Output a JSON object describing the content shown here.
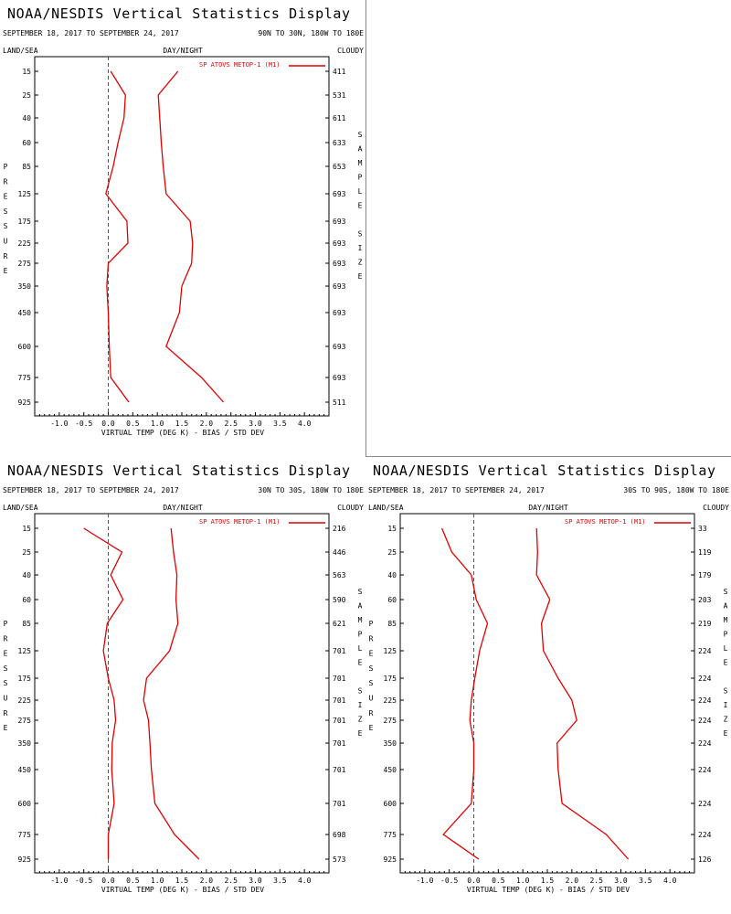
{
  "chart_data": [
    {
      "type": "line",
      "title": "NOAA/NESDIS Vertical Statistics Display",
      "date_range": "SEPTEMBER 18, 2017 TO SEPTEMBER 24, 2017",
      "region": "90N TO 30N, 180W TO 180E",
      "land_sea": "LAND/SEA",
      "day_night": "DAY/NIGHT",
      "cloudy": "CLOUDY",
      "ylabel": "PRESSURE",
      "right_label": "SAMPLE SIZE",
      "xlabel": "VIRTUAL TEMP (DEG K) - BIAS / STD DEV",
      "xlim": [
        -1.5,
        4.5
      ],
      "x_ticks": [
        "-1.0",
        "-0.5",
        "0.0",
        "0.5",
        "1.0",
        "1.5",
        "2.0",
        "2.5",
        "3.0",
        "3.5",
        "4.0"
      ],
      "pressure_levels": [
        15,
        25,
        40,
        60,
        85,
        125,
        175,
        225,
        275,
        350,
        450,
        600,
        775,
        925
      ],
      "sample_size": [
        "411",
        "531",
        "611",
        "633",
        "653",
        "693",
        "693",
        "693",
        "693",
        "693",
        "693",
        "693",
        "693",
        "511"
      ],
      "legend": "SP ATOVS METOP-1 (M1)",
      "series": [
        {
          "name": "bias",
          "values": [
            0.05,
            0.35,
            0.32,
            0.2,
            0.1,
            -0.05,
            0.38,
            0.4,
            0.0,
            -0.03,
            0.0,
            0.02,
            0.05,
            0.42
          ]
        },
        {
          "name": "std_dev",
          "values": [
            1.42,
            1.02,
            1.05,
            1.08,
            1.12,
            1.18,
            1.67,
            1.72,
            1.7,
            1.5,
            1.45,
            1.18,
            1.9,
            2.35
          ]
        }
      ],
      "color": "#e00000"
    },
    {
      "type": "line",
      "title": "NOAA/NESDIS Vertical Statistics Display",
      "date_range": "SEPTEMBER 18, 2017 TO SEPTEMBER 24, 2017",
      "region": "30N TO 30S, 180W TO 180E",
      "land_sea": "LAND/SEA",
      "day_night": "DAY/NIGHT",
      "cloudy": "CLOUDY",
      "ylabel": "PRESSURE",
      "right_label": "SAMPLE SIZE",
      "xlabel": "VIRTUAL TEMP (DEG K) - BIAS / STD DEV",
      "xlim": [
        -1.5,
        4.5
      ],
      "x_ticks": [
        "-1.0",
        "-0.5",
        "0.0",
        "0.5",
        "1.0",
        "1.5",
        "2.0",
        "2.5",
        "3.0",
        "3.5",
        "4.0"
      ],
      "pressure_levels": [
        15,
        25,
        40,
        60,
        85,
        125,
        175,
        225,
        275,
        350,
        450,
        600,
        775,
        925
      ],
      "sample_size": [
        "216",
        "446",
        "563",
        "590",
        "621",
        "701",
        "701",
        "701",
        "701",
        "701",
        "701",
        "701",
        "698",
        "573"
      ],
      "legend": "SP ATOVS METOP-1 (M1)",
      "series": [
        {
          "name": "bias",
          "values": [
            -0.5,
            0.28,
            0.05,
            0.3,
            -0.02,
            -0.1,
            0.0,
            0.12,
            0.15,
            0.08,
            0.07,
            0.12,
            0.0,
            0.0
          ]
        },
        {
          "name": "std_dev",
          "values": [
            1.28,
            1.33,
            1.4,
            1.38,
            1.42,
            1.25,
            0.78,
            0.72,
            0.82,
            0.85,
            0.88,
            0.95,
            1.35,
            1.85
          ]
        }
      ],
      "color": "#e00000"
    },
    {
      "type": "line",
      "title": "NOAA/NESDIS Vertical Statistics Display",
      "date_range": "SEPTEMBER 18, 2017 TO SEPTEMBER 24, 2017",
      "region": "30S TO 90S, 180W TO 180E",
      "land_sea": "LAND/SEA",
      "day_night": "DAY/NIGHT",
      "cloudy": "CLOUDY",
      "ylabel": "PRESSURE",
      "right_label": "SAMPLE SIZE",
      "xlabel": "VIRTUAL TEMP (DEG K) - BIAS / STD DEV",
      "xlim": [
        -1.5,
        4.5
      ],
      "x_ticks": [
        "-1.0",
        "-0.5",
        "0.0",
        "0.5",
        "1.0",
        "1.5",
        "2.0",
        "2.5",
        "3.0",
        "3.5",
        "4.0"
      ],
      "pressure_levels": [
        15,
        25,
        40,
        60,
        85,
        125,
        175,
        225,
        275,
        350,
        450,
        600,
        775,
        925
      ],
      "sample_size": [
        "33",
        "119",
        "179",
        "203",
        "219",
        "224",
        "224",
        "224",
        "224",
        "224",
        "224",
        "224",
        "224",
        "126"
      ],
      "legend": "SP ATOVS METOP-1 (M1)",
      "series": [
        {
          "name": "bias",
          "values": [
            -0.65,
            -0.45,
            -0.05,
            0.05,
            0.28,
            0.12,
            0.02,
            -0.05,
            -0.08,
            0.0,
            0.0,
            -0.05,
            -0.62,
            0.1
          ]
        },
        {
          "name": "std_dev",
          "values": [
            1.28,
            1.3,
            1.28,
            1.55,
            1.38,
            1.42,
            1.72,
            2.0,
            2.1,
            1.7,
            1.72,
            1.8,
            2.7,
            3.15
          ]
        }
      ],
      "color": "#e00000"
    }
  ]
}
